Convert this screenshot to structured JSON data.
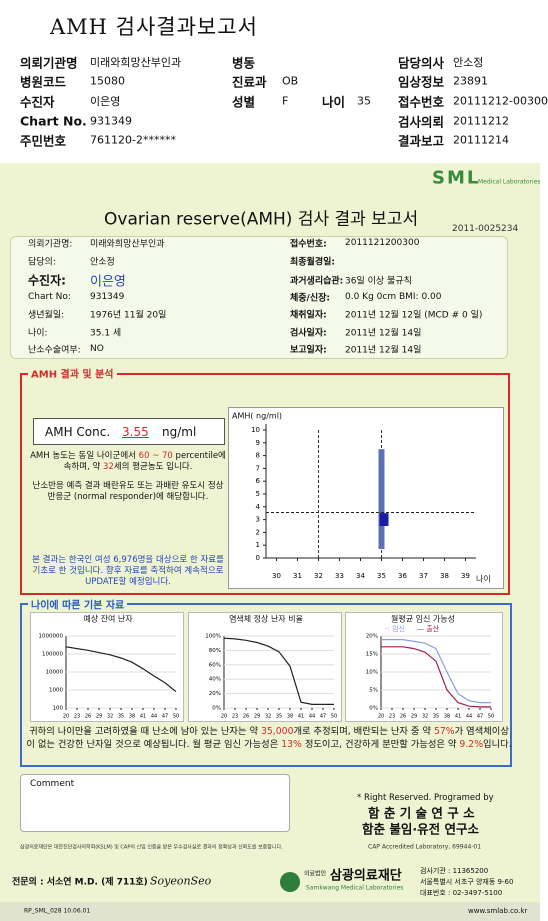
{
  "header": {
    "title": "AMH 검사결과보고서",
    "fields": [
      {
        "label": "의뢰기관명",
        "value": "미래와희망산부인과"
      },
      {
        "label": "병원코드",
        "value": "15080"
      },
      {
        "label": "수진자",
        "value": "이은영"
      },
      {
        "label": "Chart No.",
        "value": "931349"
      },
      {
        "label": "주민번호",
        "value": "761120-2******"
      },
      {
        "label": "병동"
      },
      {
        "label": "진료과",
        "value": "OB"
      },
      {
        "label": "성별",
        "value": "F"
      },
      {
        "label": "나이",
        "value": "35"
      },
      {
        "label": "담당의사",
        "value": "안소정"
      },
      {
        "label": "임상정보",
        "value": "23891"
      },
      {
        "label": "접수번호",
        "value": "20111212-00300"
      },
      {
        "label": "검사의뢰",
        "value": "20111212"
      },
      {
        "label": "결과보고",
        "value": "20111214"
      }
    ]
  },
  "report": {
    "logo": "SML",
    "logo_sub": "Medical Laboratories",
    "title": "Ovarian reserve(AMH) 검사 결과 보고서",
    "doc_no": "2011-0025234",
    "info_left": [
      {
        "label": "의뢰기관명:",
        "value": "미래와희망산부인과"
      },
      {
        "label": "담당의:",
        "value": "안소정"
      },
      {
        "label": "수진자:",
        "value": "이은영"
      },
      {
        "label": "Chart No:",
        "value": "931349"
      },
      {
        "label": "생년월일:",
        "value": "1976년 11월 20일"
      },
      {
        "label": "나이:",
        "value": "35.1 세"
      },
      {
        "label": "난소수술여부:",
        "value": "NO"
      }
    ],
    "info_right": [
      {
        "label": "접수번호:",
        "value": "2011121200300"
      },
      {
        "label": "최종월경일:"
      },
      {
        "label": "과거생리습관:",
        "value": "36일 이상 불규칙"
      },
      {
        "label": "체중/신장:",
        "value": "0.0 Kg      0cm     BMI:  0.00"
      },
      {
        "label": "채취일자:",
        "value": "2011년 12월 12일 (MCD # 0 일)"
      },
      {
        "label": "검사일자:",
        "value": "2011년 12월 14일"
      },
      {
        "label": "보고일자:",
        "value": "2011년 12월 14일"
      }
    ]
  },
  "amh": {
    "section_title": "AMH 결과 및 분석",
    "conc_label": "AMH Conc.",
    "conc_value": "3.55",
    "conc_unit": "ng/ml",
    "text1": [
      "AMH 농도는 동일 나이군에서 ",
      "60 ~ 70",
      " percentile에 속하며, 약 ",
      "32",
      "세의 평균농도 입니다."
    ],
    "text2": "난소반응 예측 결과 배란유도 또는 과배란 유도시 정상반응군 (normal responder)에 해당합니다.",
    "note": "본 결과는 한국인 여성 6,976명을 대상으로 한 자료를 기초로 한 것입니다. 향후 자료를 축적하여 계속적으로 UPDATE할 예정입니다.",
    "chart": {
      "type": "range",
      "ylabel": "AMH( ng/ml)",
      "xlabel": "나이",
      "xlim": [
        29.5,
        39.5
      ],
      "xticks": [
        30,
        31,
        32,
        33,
        34,
        35,
        36,
        37,
        38,
        39
      ],
      "ylim": [
        0,
        10
      ],
      "yticks": [
        0,
        1,
        2,
        3,
        4,
        5,
        6,
        7,
        8,
        9,
        10
      ],
      "reference_age": 32,
      "age": 35,
      "value": 3.55,
      "range": [
        0.7,
        8.5
      ],
      "iqr": [
        2.5,
        3.5
      ],
      "color": "#5b70b6",
      "box_color": "#1c1ca8"
    }
  },
  "basic": {
    "section_title": "나이에 따른 기본 자료",
    "charts": [
      {
        "type": "line",
        "title": "예상 잔여 난자",
        "log_scale": true,
        "x": [
          20,
          23,
          26,
          29,
          32,
          35,
          38,
          41,
          44,
          47,
          50
        ],
        "xlim": [
          20,
          50
        ],
        "xticks": [
          20,
          23,
          26,
          29,
          32,
          35,
          38,
          41,
          44,
          47,
          50
        ],
        "ylim": [
          100,
          1000000
        ],
        "yticks": [
          100,
          1000,
          10000,
          100000,
          1000000
        ],
        "series": [
          {
            "color": "#222222",
            "values": [
              250000,
              200000,
              160000,
              120000,
              90000,
              60000,
              35000,
              15000,
              6000,
              2500,
              800
            ]
          }
        ]
      },
      {
        "type": "line",
        "title": "염색체 정상 난자 비율",
        "x": [
          20,
          23,
          26,
          29,
          32,
          35,
          38,
          41,
          44,
          47,
          50
        ],
        "xlim": [
          20,
          50
        ],
        "xticks": [
          20,
          23,
          26,
          29,
          32,
          35,
          38,
          41,
          44,
          47,
          50
        ],
        "ylim": [
          0,
          100
        ],
        "yticks": [
          {
            "value": 0,
            "label": "0%"
          },
          {
            "value": 20,
            "label": "20%"
          },
          {
            "value": 40,
            "label": "40%"
          },
          {
            "value": 60,
            "label": "60%"
          },
          {
            "value": 80,
            "label": "80%"
          },
          {
            "value": 100,
            "label": "100%"
          }
        ],
        "series": [
          {
            "color": "#222222",
            "values": [
              97,
              96,
              94,
              91,
              86,
              78,
              58,
              8,
              5,
              5,
              5
            ]
          }
        ]
      },
      {
        "type": "line",
        "title": "월평균 임신 가능성",
        "x": [
          20,
          23,
          26,
          29,
          32,
          35,
          38,
          41,
          44,
          47,
          50
        ],
        "xlim": [
          20,
          50
        ],
        "xticks": [
          20,
          23,
          26,
          29,
          32,
          35,
          38,
          41,
          44,
          47,
          50
        ],
        "ylim": [
          0,
          20
        ],
        "yticks": [
          {
            "value": 0,
            "label": "0%"
          },
          {
            "value": 5,
            "label": "5%"
          },
          {
            "value": 10,
            "label": "10%"
          },
          {
            "value": 15,
            "label": "15%"
          },
          {
            "value": 20,
            "label": "20%"
          }
        ],
        "series": [
          {
            "name": "-: 임신",
            "color": "#8a9fe2",
            "values": [
              19,
              19,
              19,
              18.5,
              18,
              16.5,
              10,
              4,
              2,
              1.5,
              1.5
            ]
          },
          {
            "name": "— 출산",
            "color": "#a3204c",
            "values": [
              17,
              17,
              17,
              16.5,
              15.5,
              13,
              5,
              1.5,
              0.5,
              0.3,
              0.3
            ]
          }
        ]
      }
    ],
    "summary": [
      "귀하의 나이만을 고려하였을 때 난소에 남아 있는 난자는 약 ",
      "35,000",
      "개로 추정되며, 배란되는 난자 중 약 ",
      "57%",
      "가 염색체이상이 없는 건강한 난자일 것으로 예상됩니다. 월 평균 임신 가능성은 ",
      "13%",
      " 정도이고, 건강하게 분만할 가능성은 약 ",
      "9.2%",
      "입니다."
    ]
  },
  "footer": {
    "comment_label": "Comment",
    "copyright": "* Right Reserved. Programed by",
    "lab1": "함 춘 기 술 연 구 소",
    "lab2": "함춘 불임·유전 연구소",
    "cert": "삼광의료재단은 대한진단검사의학회(KSLM) 및 CAP의 신임 인증을 받은 우수검사실로 결과의 정확성과 신뢰도를 보증합니다.",
    "cap": "CAP  Accredited  Laboratory,  69944-01",
    "doctor": "전문의 : 서소연 M.D. (제 711호)",
    "signature": "SoyeonSeo",
    "org_prefix": "의료법인",
    "org": "삼광의료재단",
    "org_en": "Samkwang Medical Laboratories",
    "address": [
      "검사기관 : 11365200",
      "서울특별시 서초구 양재동 9-60",
      "대표번호 : 02-3497-5100"
    ],
    "form": "RP_SML_028  10.06.01",
    "url": "www.smlab.co.kr"
  }
}
